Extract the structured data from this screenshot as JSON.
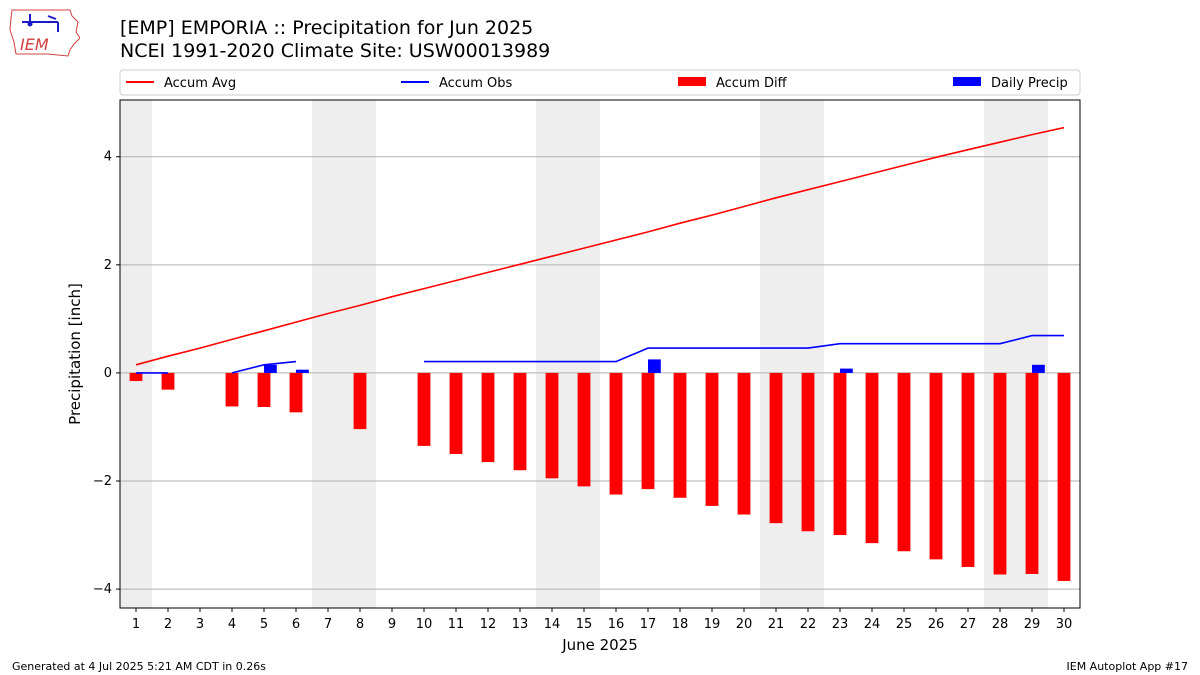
{
  "title_line1": "[EMP] EMPORIA :: Precipitation for Jun 2025",
  "title_line2": "NCEI 1991-2020 Climate Site: USW00013989",
  "logo_text": "IEM",
  "footer_left": "Generated at 4 Jul 2025 5:21 AM CDT in 0.26s",
  "footer_right": "IEM Autoplot App #17",
  "colors": {
    "avg": "#ff0000",
    "obs": "#0000ff",
    "diff": "#ff0000",
    "daily": "#0000ff",
    "weekend": "#eeeeee",
    "grid": "#b0b0b0"
  },
  "chart_data": {
    "type": "bar",
    "xlabel": "June 2025",
    "ylabel": "Precipitation [inch]",
    "xlim": [
      0.5,
      30.5
    ],
    "ylim": [
      -4.35,
      5.05
    ],
    "yticks": [
      -4,
      -2,
      0,
      2,
      4
    ],
    "ytick_labels": [
      "−4",
      "−2",
      "0",
      "2",
      "4"
    ],
    "x": [
      1,
      2,
      3,
      4,
      5,
      6,
      7,
      8,
      9,
      10,
      11,
      12,
      13,
      14,
      15,
      16,
      17,
      18,
      19,
      20,
      21,
      22,
      23,
      24,
      25,
      26,
      27,
      28,
      29,
      30
    ],
    "grid": "horizontal",
    "legend_position": "top",
    "weekend_days": [
      1,
      7,
      8,
      14,
      15,
      21,
      22,
      28,
      29
    ],
    "series": [
      {
        "name": "Accum Avg",
        "kind": "line",
        "values": [
          0.15,
          0.31,
          0.46,
          0.62,
          0.78,
          0.94,
          1.1,
          1.25,
          1.41,
          1.56,
          1.71,
          1.86,
          2.01,
          2.16,
          2.31,
          2.46,
          2.61,
          2.77,
          2.92,
          3.08,
          3.24,
          3.39,
          3.54,
          3.69,
          3.84,
          3.99,
          4.13,
          4.27,
          4.41,
          4.54
        ]
      },
      {
        "name": "Accum Obs",
        "kind": "line",
        "values": [
          0.0,
          0.0,
          null,
          0.0,
          0.15,
          0.21,
          null,
          null,
          null,
          0.21,
          0.21,
          0.21,
          0.21,
          0.21,
          0.21,
          0.21,
          0.46,
          0.46,
          0.46,
          0.46,
          0.46,
          0.46,
          0.54,
          0.54,
          0.54,
          0.54,
          0.54,
          0.54,
          0.69,
          0.69
        ]
      },
      {
        "name": "Accum Diff",
        "kind": "bar",
        "values": [
          -0.15,
          -0.31,
          null,
          -0.62,
          -0.63,
          -0.73,
          null,
          -1.04,
          null,
          -1.35,
          -1.5,
          -1.65,
          -1.8,
          -1.95,
          -2.1,
          -2.25,
          -2.15,
          -2.31,
          -2.46,
          -2.62,
          -2.78,
          -2.93,
          -3.0,
          -3.15,
          -3.3,
          -3.45,
          -3.59,
          -3.73,
          -3.72,
          -3.85
        ]
      },
      {
        "name": "Daily Precip",
        "kind": "bar",
        "values": [
          0,
          0,
          0,
          0,
          0.15,
          0.06,
          0,
          0,
          0,
          0,
          0,
          0,
          0,
          0,
          0,
          0,
          0.25,
          0,
          0,
          0,
          0,
          0,
          0.08,
          0,
          0,
          0,
          0,
          0,
          0.15,
          0
        ]
      }
    ]
  }
}
